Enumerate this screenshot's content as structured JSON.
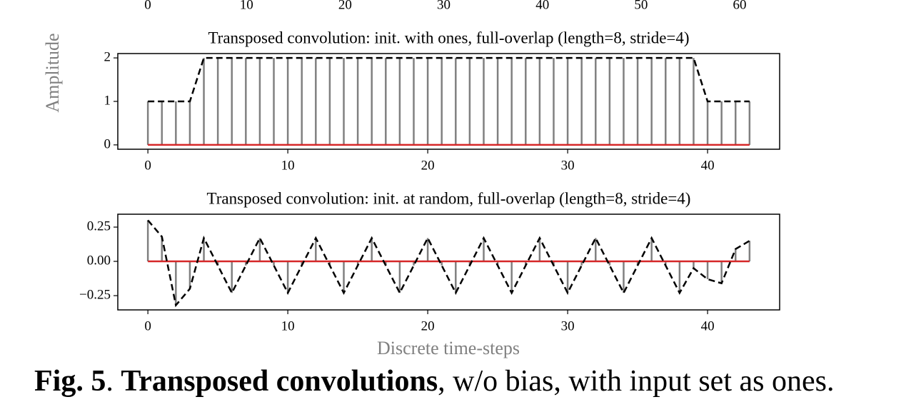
{
  "chart_data": [
    {
      "type": "stem",
      "xlim": [
        -3.15,
        66.15
      ],
      "xticks": [
        0,
        10,
        20,
        30,
        40,
        50,
        60
      ]
    },
    {
      "type": "stem",
      "title": "Transposed convolution: init. with ones, full-overlap (length=8, stride=4)",
      "ylabel": "Amplitude",
      "x": [
        0,
        1,
        2,
        3,
        4,
        5,
        6,
        7,
        8,
        9,
        10,
        11,
        12,
        13,
        14,
        15,
        16,
        17,
        18,
        19,
        20,
        21,
        22,
        23,
        24,
        25,
        26,
        27,
        28,
        29,
        30,
        31,
        32,
        33,
        34,
        35,
        36,
        37,
        38,
        39,
        40,
        41,
        42,
        43
      ],
      "values": [
        1,
        1,
        1,
        1,
        2,
        2,
        2,
        2,
        2,
        2,
        2,
        2,
        2,
        2,
        2,
        2,
        2,
        2,
        2,
        2,
        2,
        2,
        2,
        2,
        2,
        2,
        2,
        2,
        2,
        2,
        2,
        2,
        2,
        2,
        2,
        2,
        2,
        2,
        2,
        2,
        1,
        1,
        1,
        1
      ],
      "stem_color": "#808080",
      "baseline_color": "#d62728",
      "line_color": "#000000",
      "xlim": [
        -2.15,
        45.15
      ],
      "xticks": [
        0,
        10,
        20,
        30,
        40
      ],
      "ylim": [
        -0.1,
        2.1
      ],
      "yticks": [
        0,
        1,
        2
      ]
    },
    {
      "type": "stem",
      "title": "Transposed convolution: init. at random, full-overlap (length=8, stride=4)",
      "xlabel": "Discrete time-steps",
      "x": [
        0,
        1,
        2,
        3,
        4,
        5,
        6,
        7,
        8,
        9,
        10,
        11,
        12,
        13,
        14,
        15,
        16,
        17,
        18,
        19,
        20,
        21,
        22,
        23,
        24,
        25,
        26,
        27,
        28,
        29,
        30,
        31,
        32,
        33,
        34,
        35,
        36,
        37,
        38,
        39,
        40,
        41,
        42,
        43
      ],
      "values": [
        0.3,
        0.18,
        -0.32,
        -0.2,
        0.17,
        -0.03,
        -0.23,
        -0.03,
        0.17,
        -0.03,
        -0.23,
        -0.03,
        0.17,
        -0.03,
        -0.23,
        -0.03,
        0.17,
        -0.03,
        -0.23,
        -0.03,
        0.17,
        -0.03,
        -0.23,
        -0.03,
        0.17,
        -0.03,
        -0.23,
        -0.03,
        0.17,
        -0.03,
        -0.23,
        -0.03,
        0.17,
        -0.03,
        -0.23,
        -0.03,
        0.17,
        -0.03,
        -0.23,
        -0.05,
        -0.13,
        -0.16,
        0.09,
        0.15
      ],
      "stem_color": "#808080",
      "baseline_color": "#d62728",
      "line_color": "#000000",
      "xlim": [
        -2.15,
        45.15
      ],
      "xticks": [
        0,
        10,
        20,
        30,
        40
      ],
      "ylim": [
        -0.354,
        0.344
      ],
      "yticks": [
        {
          "value": -0.25,
          "label": "−0.25"
        },
        {
          "value": 0,
          "label": "0.00"
        },
        0.25
      ]
    }
  ],
  "caption": [
    "Fig. 5",
    ". ",
    "Transposed convolutions",
    ", w/o bias, with input set as ones."
  ]
}
